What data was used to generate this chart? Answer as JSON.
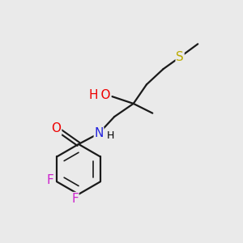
{
  "background_color": "#EAEAEA",
  "atom_colors": {
    "C": "#000000",
    "H": "#000000",
    "O": "#EE0000",
    "N": "#2222DD",
    "F": "#CC22CC",
    "S": "#BBAA00"
  },
  "bond_color": "#1a1a1a",
  "bond_width": 1.6,
  "font_size_atom": 11,
  "font_size_h": 9,
  "xlim": [
    0,
    10
  ],
  "ylim": [
    0,
    10
  ]
}
